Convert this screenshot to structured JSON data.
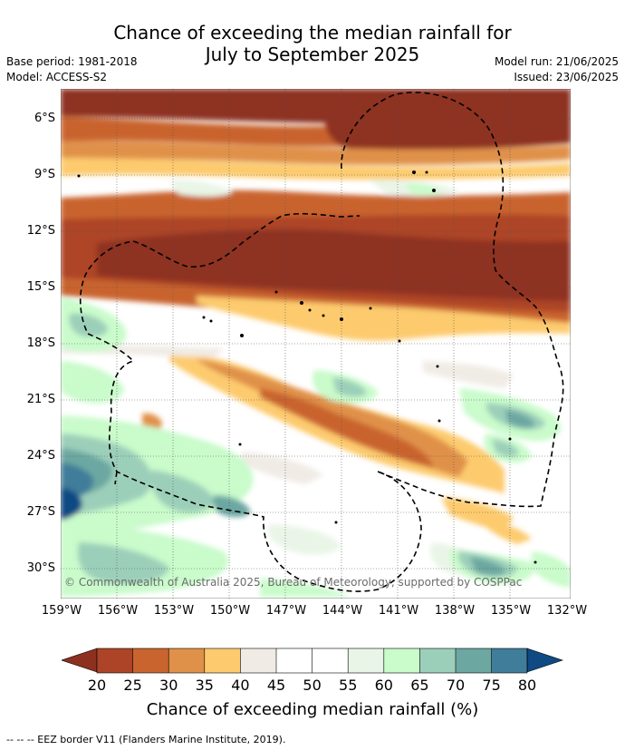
{
  "title": {
    "line1": "Chance of exceeding the median rainfall for",
    "line2": "July to September 2025"
  },
  "meta": {
    "base_period": "Base period: 1981-2018",
    "model": "Model: ACCESS-S2",
    "model_run": "Model run: 21/06/2025",
    "issued": "Issued: 23/06/2025"
  },
  "map": {
    "lat_labels": [
      "6°S",
      "9°S",
      "12°S",
      "15°S",
      "18°S",
      "21°S",
      "24°S",
      "27°S",
      "30°S"
    ],
    "lon_labels": [
      "159°W",
      "156°W",
      "153°W",
      "150°W",
      "147°W",
      "144°W",
      "141°W",
      "138°W",
      "135°W",
      "132°W"
    ],
    "copyright": "© Commonwealth of Australia 2025, Bureau of Meteorology, supported by COSPPac",
    "palette": {
      "lt20": "#8e3020",
      "p20_25": "#ad4427",
      "p25_30": "#c9642f",
      "p30_35": "#e09149",
      "p35_40": "#fdcb6e",
      "p40_45": "#f0ebe5",
      "p45_55": "#ffffff",
      "p55_60": "#e9f5e7",
      "p60_65": "#c9fbcb",
      "p65_70": "#9ccfb9",
      "p70_75": "#6ca7a2",
      "p75_80": "#3f7d9a",
      "gt80": "#0f4a83"
    }
  },
  "colorbar": {
    "ticks": [
      "20",
      "25",
      "30",
      "35",
      "40",
      "45",
      "50",
      "55",
      "60",
      "65",
      "70",
      "75",
      "80"
    ],
    "label": "Chance of exceeding median rainfall (%)"
  },
  "footnote": "--  --  -- EEZ border V11 (Flanders Marine Institute, 2019)."
}
